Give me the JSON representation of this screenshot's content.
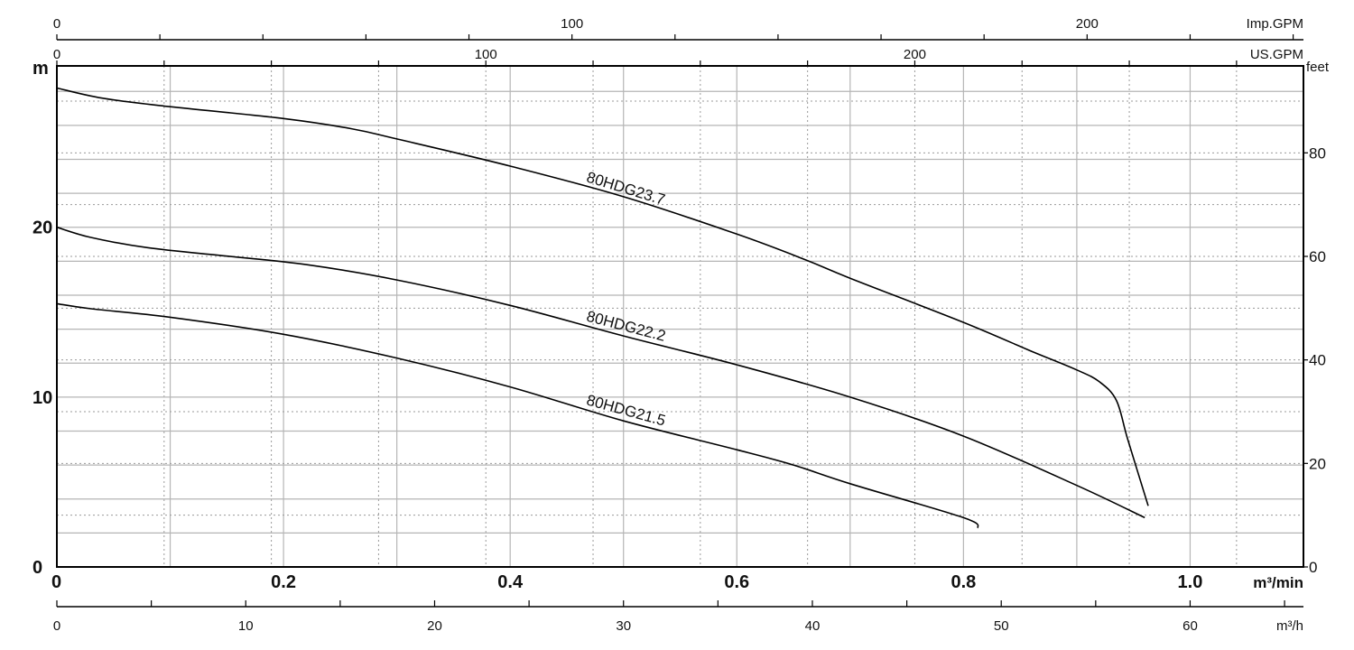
{
  "chart_data": {
    "type": "line",
    "x_axis_main": {
      "unit": "m³/min",
      "range": [
        0,
        1.1
      ],
      "ticks": [
        "0",
        "0.2",
        "0.4",
        "0.6",
        "0.8",
        "1.0"
      ]
    },
    "x_axis_m3h": {
      "unit": "m³/h",
      "range": [
        0,
        66
      ],
      "ticks": [
        "0",
        "10",
        "20",
        "30",
        "40",
        "50",
        "60"
      ]
    },
    "x_axis_usgpm": {
      "unit": "US.GPM",
      "range": [
        0,
        290.6
      ],
      "ticks": [
        "0",
        "100",
        "200"
      ]
    },
    "x_axis_impgpm": {
      "unit": "Imp.GPM",
      "range": [
        0,
        242
      ],
      "ticks": [
        "0",
        "100",
        "200"
      ]
    },
    "y_axis_left": {
      "unit": "m",
      "range": [
        0,
        29.5
      ],
      "ticks": [
        "0",
        "10",
        "20"
      ]
    },
    "y_axis_right": {
      "unit": "feet",
      "range": [
        0,
        96.8
      ],
      "ticks": [
        "0",
        "20",
        "40",
        "60",
        "80"
      ]
    },
    "series": [
      {
        "name": "80HDG23.7",
        "points": [
          [
            0,
            28.2
          ],
          [
            0.04,
            27.6
          ],
          [
            0.1,
            27.1
          ],
          [
            0.2,
            26.4
          ],
          [
            0.26,
            25.8
          ],
          [
            0.3,
            25.2
          ],
          [
            0.4,
            23.6
          ],
          [
            0.5,
            21.8
          ],
          [
            0.6,
            19.6
          ],
          [
            0.66,
            18.1
          ],
          [
            0.7,
            17.0
          ],
          [
            0.8,
            14.4
          ],
          [
            0.86,
            12.7
          ],
          [
            0.9,
            11.6
          ],
          [
            0.92,
            10.9
          ],
          [
            0.935,
            9.8
          ],
          [
            0.945,
            7.5
          ],
          [
            0.963,
            3.6
          ]
        ]
      },
      {
        "name": "80HDG22.2",
        "points": [
          [
            0,
            20.0
          ],
          [
            0.03,
            19.4
          ],
          [
            0.08,
            18.8
          ],
          [
            0.15,
            18.3
          ],
          [
            0.22,
            17.8
          ],
          [
            0.3,
            16.9
          ],
          [
            0.4,
            15.4
          ],
          [
            0.5,
            13.6
          ],
          [
            0.6,
            11.9
          ],
          [
            0.7,
            10.0
          ],
          [
            0.8,
            7.7
          ],
          [
            0.9,
            4.8
          ],
          [
            0.96,
            2.9
          ]
        ]
      },
      {
        "name": "80HDG21.5",
        "points": [
          [
            0,
            15.5
          ],
          [
            0.03,
            15.2
          ],
          [
            0.1,
            14.7
          ],
          [
            0.2,
            13.7
          ],
          [
            0.3,
            12.3
          ],
          [
            0.4,
            10.6
          ],
          [
            0.5,
            8.6
          ],
          [
            0.6,
            6.9
          ],
          [
            0.65,
            6.0
          ],
          [
            0.7,
            4.9
          ],
          [
            0.8,
            2.9
          ],
          [
            0.813,
            2.3
          ]
        ]
      }
    ],
    "annotations": [
      "80HDG23.7",
      "80HDG22.2",
      "80HDG21.5"
    ],
    "grid": true
  }
}
